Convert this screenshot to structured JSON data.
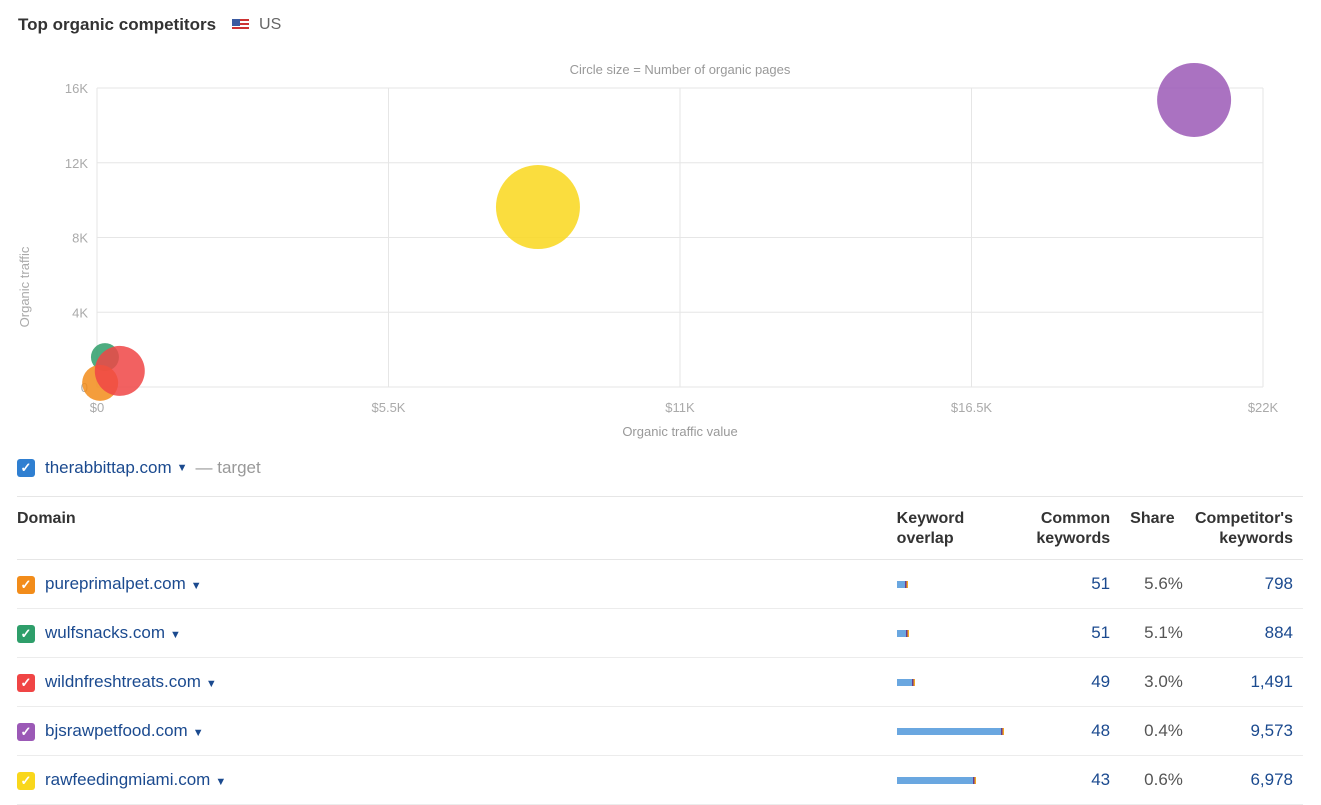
{
  "header": {
    "title": "Top organic competitors",
    "country": "US",
    "flag_icon": "us-flag-icon"
  },
  "chart_data": {
    "type": "scatter",
    "subtitle": "Circle size = Number of organic pages",
    "xlabel": "Organic traffic value",
    "ylabel": "Organic traffic",
    "xlim": [
      0,
      22000
    ],
    "ylim": [
      0,
      16000
    ],
    "x_ticks": [
      "$0",
      "$5.5K",
      "$11K",
      "$16.5K",
      "$22K"
    ],
    "x_tick_values": [
      0,
      5500,
      11000,
      16500,
      22000
    ],
    "y_ticks": [
      "0",
      "4K",
      "8K",
      "12K",
      "16K"
    ],
    "y_tick_values": [
      0,
      4000,
      8000,
      12000,
      16000
    ],
    "grid": true,
    "points": [
      {
        "domain": "bjsrawpetfood.com",
        "x": 20700,
        "y": 15360,
        "size": 37,
        "color": "#9b59b6"
      },
      {
        "domain": "rawfeedingmiami.com",
        "x": 8320,
        "y": 9630,
        "size": 42,
        "color": "#f9d71c"
      },
      {
        "domain": "wulfsnacks.com",
        "x": 150,
        "y": 1600,
        "size": 14,
        "color": "#2e9e6a"
      },
      {
        "domain": "pureprimalpet.com",
        "x": 60,
        "y": 220,
        "size": 18,
        "color": "#f28c1a"
      },
      {
        "domain": "wildnfreshtreats.com",
        "x": 430,
        "y": 860,
        "size": 25,
        "color": "#f04545"
      }
    ]
  },
  "target": {
    "domain": "therabbittap.com",
    "suffix": "— target",
    "color": "#2f7fd1"
  },
  "table": {
    "headers": {
      "domain": "Domain",
      "overlap": "Keyword overlap",
      "common": "Common keywords",
      "share": "Share",
      "competitor": "Competitor's keywords"
    },
    "rows": [
      {
        "domain": "pureprimalpet.com",
        "color": "#f28c1a",
        "overlap_pct": 8,
        "common": "51",
        "share": "5.6%",
        "competitor": "798"
      },
      {
        "domain": "wulfsnacks.com",
        "color": "#2e9e6a",
        "overlap_pct": 9,
        "common": "51",
        "share": "5.1%",
        "competitor": "884"
      },
      {
        "domain": "wildnfreshtreats.com",
        "color": "#f04545",
        "overlap_pct": 15,
        "common": "49",
        "share": "3.0%",
        "competitor": "1,491"
      },
      {
        "domain": "bjsrawpetfood.com",
        "color": "#9b59b6",
        "overlap_pct": 100,
        "common": "48",
        "share": "0.4%",
        "competitor": "9,573"
      },
      {
        "domain": "rawfeedingmiami.com",
        "color": "#f9d71c",
        "overlap_pct": 73,
        "common": "43",
        "share": "0.6%",
        "competitor": "6,978"
      }
    ]
  }
}
